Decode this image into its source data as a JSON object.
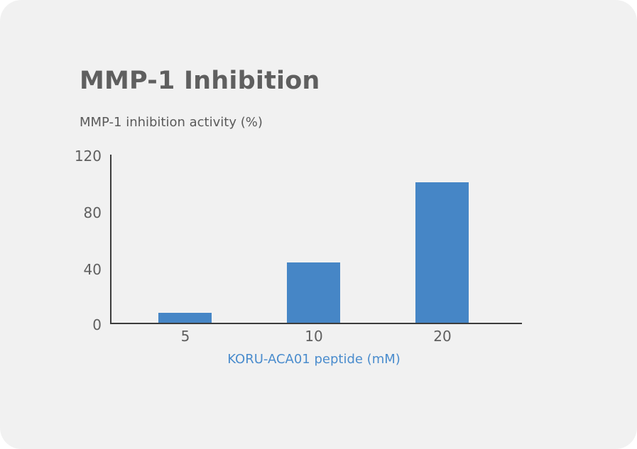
{
  "card": {
    "title": "MMP-1 Inhibition",
    "background": "#f1f1f1"
  },
  "chart_data": {
    "type": "bar",
    "title": "MMP-1 Inhibition",
    "ylabel": "MMP-1 inhibition activity (%)",
    "xlabel": "KORU-ACA01 peptide (mM)",
    "categories": [
      "5",
      "10",
      "20"
    ],
    "values": [
      7,
      43,
      100
    ],
    "ylim": [
      0,
      120
    ],
    "yticks": [
      "0",
      "40",
      "80",
      "120"
    ],
    "grid": false,
    "legend": null,
    "bar_color": "#4686c6",
    "xlabel_color": "#4a8ccd"
  }
}
